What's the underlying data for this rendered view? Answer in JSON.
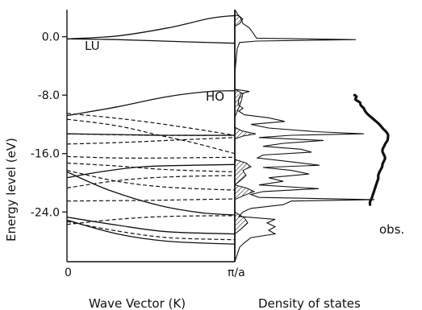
{
  "chart_data": [
    {
      "type": "line",
      "panel": "band-structure",
      "xlabel": "Wave Vector (K)",
      "ylabel": "Energy level (eV)",
      "x_tick_labels": [
        "0",
        "π/a"
      ],
      "y_ticks": [
        0.0,
        -8.0,
        -16.0,
        -24.0
      ],
      "y_tick_labels": [
        "0.0",
        "-8.0",
        "-16.0",
        "-24.0"
      ],
      "ylim": [
        -30.8,
        3.7
      ],
      "xlim": [
        0,
        1
      ],
      "annotations": {
        "lu": "LU",
        "ho": "HO"
      },
      "series": [
        {
          "style": "solid",
          "points": [
            [
              0,
              -0.3
            ],
            [
              0.3,
              0.1
            ],
            [
              0.6,
              1.2
            ],
            [
              0.85,
              2.5
            ],
            [
              1,
              2.9
            ]
          ]
        },
        {
          "style": "solid",
          "points": [
            [
              0,
              -0.3
            ],
            [
              0.3,
              -0.4
            ],
            [
              0.7,
              -0.7
            ],
            [
              1,
              -0.9
            ]
          ]
        },
        {
          "style": "solid",
          "points": [
            [
              0,
              -10.8
            ],
            [
              0.3,
              -9.6
            ],
            [
              0.6,
              -8.2
            ],
            [
              0.85,
              -7.5
            ],
            [
              1,
              -7.4
            ]
          ]
        },
        {
          "style": "dashed",
          "points": [
            [
              0,
              -10.5
            ],
            [
              0.35,
              -11.3
            ],
            [
              0.7,
              -12.4
            ],
            [
              1,
              -13.5
            ]
          ]
        },
        {
          "style": "solid",
          "points": [
            [
              0,
              -13.3
            ],
            [
              0.3,
              -13.4
            ],
            [
              0.6,
              -13.5
            ],
            [
              1,
              -13.5
            ]
          ]
        },
        {
          "style": "dashed",
          "points": [
            [
              0,
              -13.3
            ],
            [
              0.5,
              -13.5
            ],
            [
              1,
              -13.5
            ]
          ]
        },
        {
          "style": "dashed",
          "points": [
            [
              0,
              -14.7
            ],
            [
              0.3,
              -14.5
            ],
            [
              0.6,
              -14.2
            ],
            [
              1,
              -13.8
            ]
          ]
        },
        {
          "style": "dashed",
          "points": [
            [
              0,
              -11.3
            ],
            [
              0.3,
              -12.2
            ],
            [
              0.55,
              -13.5
            ],
            [
              0.75,
              -14.5
            ],
            [
              1,
              -16.0
            ]
          ]
        },
        {
          "style": "dashed",
          "points": [
            [
              0,
              -16.4
            ],
            [
              0.3,
              -16.6
            ],
            [
              0.6,
              -16.6
            ],
            [
              1,
              -16.5
            ]
          ]
        },
        {
          "style": "solid",
          "points": [
            [
              0,
              -19.3
            ],
            [
              0.2,
              -18.5
            ],
            [
              0.45,
              -17.8
            ],
            [
              0.75,
              -17.6
            ],
            [
              1,
              -17.5
            ]
          ]
        },
        {
          "style": "dashed",
          "points": [
            [
              0,
              -17.3
            ],
            [
              0.3,
              -17.7
            ],
            [
              0.6,
              -18.2
            ],
            [
              1,
              -18.5
            ]
          ]
        },
        {
          "style": "dashed",
          "points": [
            [
              0,
              -20.7
            ],
            [
              0.3,
              -19.7
            ],
            [
              0.6,
              -19.2
            ],
            [
              1,
              -19.0
            ]
          ]
        },
        {
          "style": "dashed",
          "points": [
            [
              0,
              -18.3
            ],
            [
              0.3,
              -19.8
            ],
            [
              0.6,
              -20.6
            ],
            [
              1,
              -21.0
            ]
          ]
        },
        {
          "style": "solid",
          "points": [
            [
              0,
              -18.5
            ],
            [
              0.25,
              -21.0
            ],
            [
              0.55,
              -23.1
            ],
            [
              0.8,
              -24.1
            ],
            [
              1,
              -24.4
            ]
          ]
        },
        {
          "style": "dashed",
          "points": [
            [
              0,
              -22.5
            ],
            [
              0.5,
              -22.4
            ],
            [
              1,
              -22.2
            ]
          ]
        },
        {
          "style": "dashed",
          "points": [
            [
              0,
              -25.7
            ],
            [
              0.3,
              -25.0
            ],
            [
              0.6,
              -24.6
            ],
            [
              1,
              -24.5
            ]
          ]
        },
        {
          "style": "solid",
          "points": [
            [
              0,
              -24.7
            ],
            [
              0.3,
              -25.8
            ],
            [
              0.6,
              -26.7
            ],
            [
              1,
              -27.0
            ]
          ]
        },
        {
          "style": "dashed",
          "points": [
            [
              0,
              -25.3
            ],
            [
              0.3,
              -26.6
            ],
            [
              0.6,
              -27.5
            ],
            [
              1,
              -27.8
            ]
          ]
        },
        {
          "style": "solid",
          "points": [
            [
              0,
              -25.1
            ],
            [
              0.3,
              -27.0
            ],
            [
              0.6,
              -28.0
            ],
            [
              1,
              -28.4
            ]
          ]
        }
      ]
    },
    {
      "type": "area",
      "panel": "density-of-states",
      "xlabel": "Density of states",
      "ylim": [
        -30.8,
        3.7
      ],
      "observed_label": "obs.",
      "dos_outline": [
        [
          3.7,
          0
        ],
        [
          3.0,
          4
        ],
        [
          2.6,
          7
        ],
        [
          1.8,
          10
        ],
        [
          1.2,
          18
        ],
        [
          0.6,
          22
        ],
        [
          -0.2,
          27
        ],
        [
          -0.4,
          150
        ],
        [
          -0.6,
          27
        ],
        [
          -0.8,
          6
        ],
        [
          -1.6,
          3
        ],
        [
          -5.0,
          0
        ],
        [
          -7.2,
          0
        ],
        [
          -7.5,
          18
        ],
        [
          -7.8,
          8
        ],
        [
          -8.5,
          5
        ],
        [
          -9.3,
          4
        ],
        [
          -9.8,
          10
        ],
        [
          -10.2,
          5
        ],
        [
          -10.7,
          12
        ],
        [
          -11.1,
          42
        ],
        [
          -11.6,
          62
        ],
        [
          -12.0,
          20
        ],
        [
          -12.5,
          42
        ],
        [
          -13.0,
          100
        ],
        [
          -13.3,
          160
        ],
        [
          -13.5,
          70
        ],
        [
          -13.8,
          30
        ],
        [
          -14.2,
          110
        ],
        [
          -14.6,
          60
        ],
        [
          -15.0,
          35
        ],
        [
          -15.4,
          82
        ],
        [
          -15.8,
          95
        ],
        [
          -16.2,
          35
        ],
        [
          -16.6,
          28
        ],
        [
          -17.2,
          75
        ],
        [
          -17.6,
          105
        ],
        [
          -17.9,
          35
        ],
        [
          -18.3,
          70
        ],
        [
          -18.8,
          92
        ],
        [
          -19.3,
          42
        ],
        [
          -19.8,
          60
        ],
        [
          -20.3,
          30
        ],
        [
          -20.8,
          104
        ],
        [
          -21.2,
          35
        ],
        [
          -21.6,
          20
        ],
        [
          -22.0,
          30
        ],
        [
          -22.3,
          173
        ],
        [
          -22.5,
          70
        ],
        [
          -23.0,
          60
        ],
        [
          -23.5,
          20
        ],
        [
          -24.0,
          10
        ],
        [
          -24.6,
          5
        ],
        [
          -25.0,
          50
        ],
        [
          -25.5,
          40
        ],
        [
          -26.0,
          50
        ],
        [
          -26.5,
          42
        ],
        [
          -27.0,
          50
        ],
        [
          -27.5,
          20
        ],
        [
          -28.2,
          12
        ],
        [
          -28.8,
          6
        ],
        [
          -29.5,
          4
        ],
        [
          -30.8,
          0
        ]
      ],
      "dos_hatched": [
        [
          3.0,
          [
            [
              3.0,
              0
            ],
            [
              2.8,
              6
            ],
            [
              2.4,
              10
            ],
            [
              1.8,
              6
            ],
            [
              1.4,
              0
            ]
          ]
        ],
        [
          -7.2,
          [
            [
              -7.2,
              0
            ],
            [
              -7.8,
              10
            ],
            [
              -8.8,
              8
            ],
            [
              -10.0,
              4
            ],
            [
              -11.0,
              0
            ]
          ]
        ],
        [
          -12.4,
          [
            [
              -12.4,
              0
            ],
            [
              -12.9,
              9
            ],
            [
              -13.3,
              26
            ],
            [
              -13.6,
              10
            ],
            [
              -14.0,
              0
            ]
          ]
        ],
        [
          -16.8,
          [
            [
              -16.8,
              0
            ],
            [
              -17.3,
              14
            ],
            [
              -17.8,
              20
            ],
            [
              -18.3,
              10
            ],
            [
              -19.0,
              14
            ],
            [
              -19.6,
              8
            ],
            [
              -20.3,
              0
            ]
          ]
        ],
        [
          -20.3,
          [
            [
              -20.3,
              0
            ],
            [
              -20.7,
              14
            ],
            [
              -21.2,
              24
            ],
            [
              -21.8,
              10
            ],
            [
              -22.3,
              0
            ]
          ]
        ],
        [
          -24.0,
          [
            [
              -24.0,
              0
            ],
            [
              -24.8,
              12
            ],
            [
              -25.5,
              16
            ],
            [
              -26.3,
              8
            ],
            [
              -27.0,
              0
            ]
          ]
        ]
      ],
      "observed_spectrum": [
        [
          -8.0,
          99
        ],
        [
          -8.2,
          103
        ],
        [
          -8.6,
          101
        ],
        [
          -9.0,
          110
        ],
        [
          -9.4,
          112
        ],
        [
          -9.8,
          118
        ],
        [
          -10.2,
          121
        ],
        [
          -10.6,
          126
        ],
        [
          -11.0,
          133
        ],
        [
          -11.4,
          140
        ],
        [
          -11.8,
          147
        ],
        [
          -12.2,
          153
        ],
        [
          -12.6,
          158
        ],
        [
          -13.0,
          164
        ],
        [
          -13.4,
          168
        ],
        [
          -13.8,
          168
        ],
        [
          -14.2,
          167
        ],
        [
          -14.6,
          163
        ],
        [
          -15.0,
          160
        ],
        [
          -15.4,
          157
        ],
        [
          -15.8,
          157
        ],
        [
          -16.2,
          160
        ],
        [
          -16.6,
          162
        ],
        [
          -17.0,
          160
        ],
        [
          -17.4,
          157
        ],
        [
          -17.8,
          156
        ],
        [
          -18.2,
          153
        ],
        [
          -18.6,
          150
        ],
        [
          -19.0,
          148
        ],
        [
          -19.4,
          148
        ],
        [
          -19.8,
          146
        ],
        [
          -20.2,
          144
        ],
        [
          -20.6,
          142
        ],
        [
          -21.0,
          140
        ],
        [
          -21.4,
          138
        ],
        [
          -21.8,
          136
        ],
        [
          -22.2,
          134
        ],
        [
          -22.6,
          131
        ],
        [
          -23.0,
          131
        ]
      ]
    }
  ]
}
